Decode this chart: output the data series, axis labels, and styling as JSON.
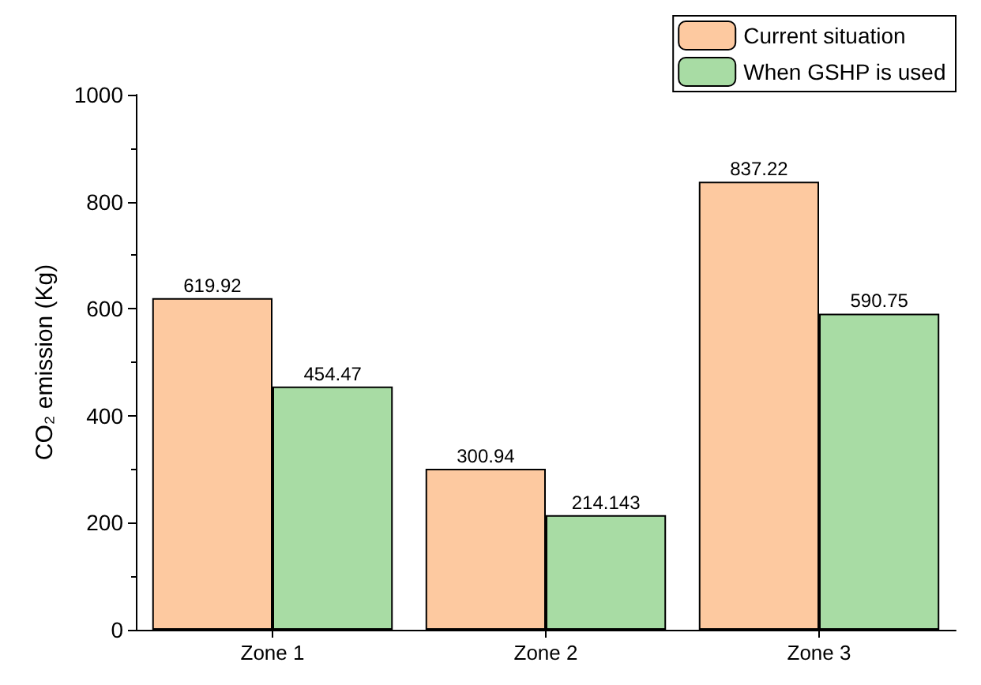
{
  "chart_data": {
    "type": "bar",
    "ylabel": "CO₂ emission (Kg)",
    "categories": [
      "Zone 1",
      "Zone 2",
      "Zone 3"
    ],
    "series": [
      {
        "name": "Current situation",
        "color": "#fdc9a0",
        "values": [
          619.92,
          300.94,
          837.22
        ]
      },
      {
        "name": "When GSHP is used",
        "color": "#a8dca4",
        "values": [
          454.47,
          214.143,
          590.75
        ]
      }
    ],
    "ylim": [
      0,
      1000
    ],
    "yticks": [
      0,
      200,
      400,
      600,
      800,
      1000
    ],
    "grid": false,
    "legend": "top right",
    "data_labels": true
  }
}
